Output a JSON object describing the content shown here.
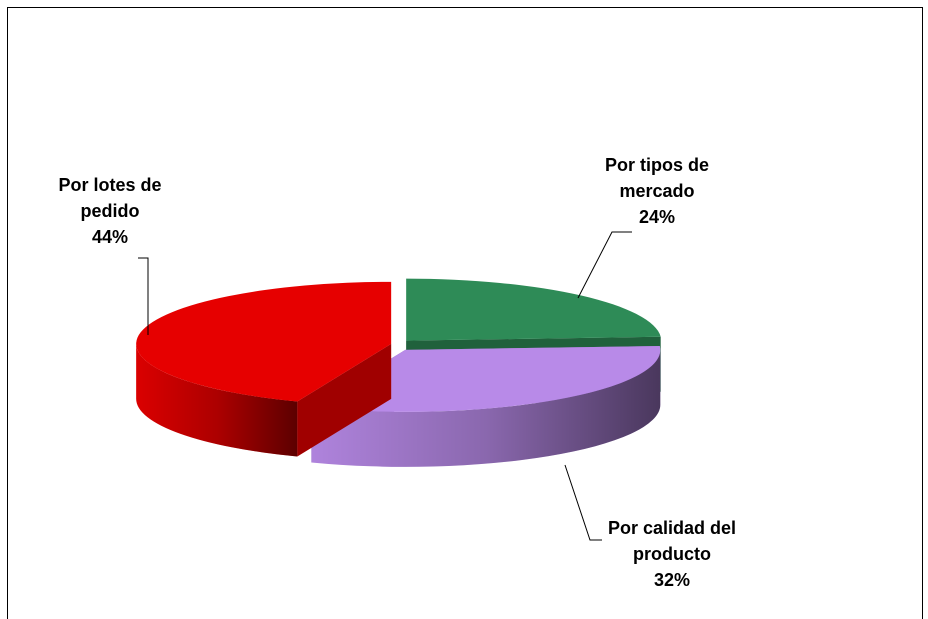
{
  "chart_data": {
    "type": "pie",
    "categories": [
      "Por tipos de mercado",
      "Por calidad del producto",
      "Por lotes de pedido"
    ],
    "values": [
      24,
      32,
      44
    ],
    "value_labels": [
      "24%",
      "32%",
      "44%"
    ],
    "colors": [
      "#2e8b57",
      "#b88ae8",
      "#e60000"
    ]
  }
}
